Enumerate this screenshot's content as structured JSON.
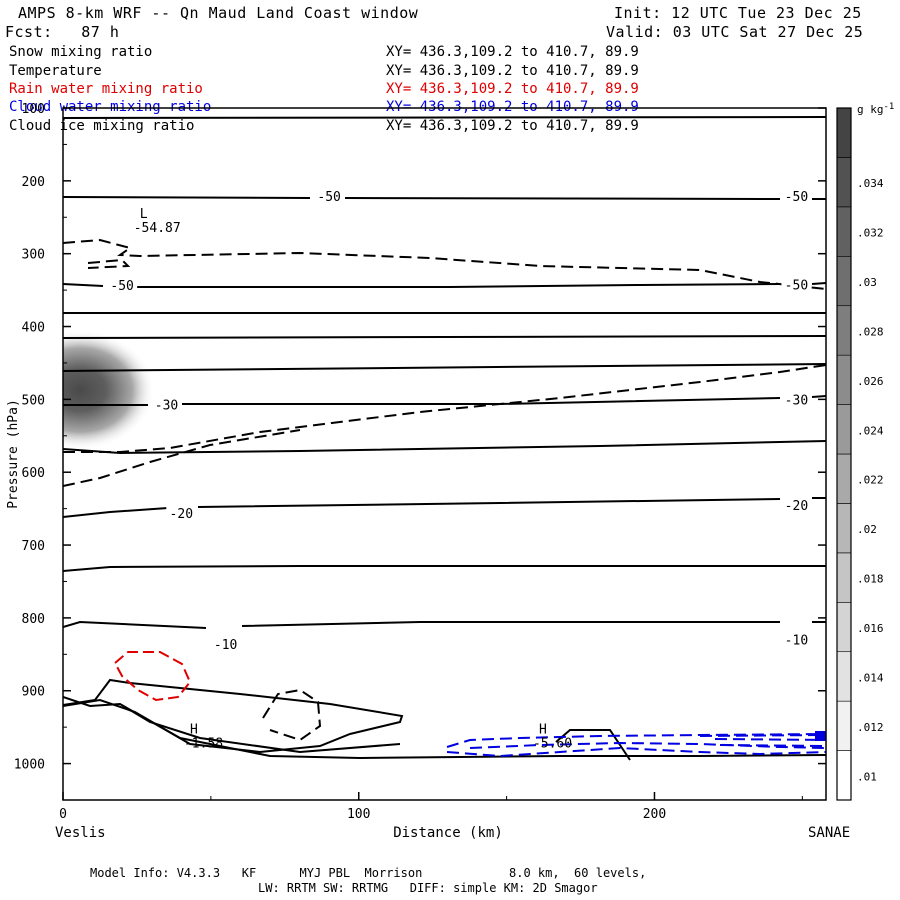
{
  "header": {
    "title": "AMPS 8-km WRF -- Qn Maud Land Coast window",
    "init": "Init: 12 UTC Tue 23 Dec 25",
    "forecast": "Fcst:   87 h",
    "valid": "Valid: 03 UTC Sat 27 Dec 25"
  },
  "fields": [
    {
      "name": "Snow mixing ratio",
      "xy": "XY= 436.3,109.2 to 410.7, 89.9",
      "color": "#000000"
    },
    {
      "name": "Temperature",
      "xy": "XY= 436.3,109.2 to 410.7, 89.9",
      "color": "#000000"
    },
    {
      "name": "Rain water mixing ratio",
      "xy": "XY= 436.3,109.2 to 410.7, 89.9",
      "color": "#e00000"
    },
    {
      "name": "Cloud water mixing ratio",
      "xy": "XY= 436.3,109.2 to 410.7, 89.9",
      "color": "#0000e0"
    },
    {
      "name": "Cloud ice mixing ratio",
      "xy": "XY= 436.3,109.2 to 410.7, 89.9",
      "color": "#000000"
    }
  ],
  "chart_data": {
    "type": "cross-section",
    "xlabel": "Distance (km)",
    "ylabel": "Pressure (hPa)",
    "xlim": [
      0,
      258
    ],
    "ylim": [
      1050,
      100
    ],
    "x_ticks": [
      0,
      100,
      200
    ],
    "y_ticks": [
      100,
      200,
      300,
      400,
      500,
      600,
      700,
      800,
      900,
      1000
    ],
    "left_endpoint": "Veslis",
    "right_endpoint": "SANAE",
    "colorbar": {
      "unit": "g kg",
      "unit_exp": "-1",
      "levels": [
        0.01,
        0.012,
        0.014,
        0.016,
        0.018,
        0.02,
        0.022,
        0.024,
        0.026,
        0.028,
        0.03,
        0.032,
        0.034
      ],
      "tick_labels": [
        ".01",
        ".012",
        ".014",
        ".016",
        ".018",
        ".02",
        ".022",
        ".024",
        ".026",
        ".028",
        ".03",
        ".032",
        ".034"
      ]
    },
    "snow_max": {
      "x_km": 5,
      "p_hPa": 478,
      "value_g_kg": 0.034
    },
    "isotherm_labels": [
      {
        "text": "-50",
        "x": 90,
        "p": 221
      },
      {
        "text": "-50",
        "x": 248,
        "p": 221
      },
      {
        "text": "-50",
        "x": 20,
        "p": 343
      },
      {
        "text": "-50",
        "x": 248,
        "p": 342
      },
      {
        "text": "-30",
        "x": 35,
        "p": 507
      },
      {
        "text": "-30",
        "x": 248,
        "p": 500
      },
      {
        "text": "-20",
        "x": 40,
        "p": 656
      },
      {
        "text": "-20",
        "x": 248,
        "p": 645
      },
      {
        "text": "-10",
        "x": 55,
        "p": 836
      },
      {
        "text": "-10",
        "x": 248,
        "p": 830
      }
    ],
    "extrema": [
      {
        "type": "L",
        "value": "-54.87",
        "x": 30,
        "p": 270
      },
      {
        "type": "H",
        "value": "-1.58",
        "x": 47,
        "p": 978
      },
      {
        "type": "H",
        "value": "-5.60",
        "x": 165,
        "p": 978
      }
    ]
  },
  "footer": {
    "line1": "Model Info: V4.3.3   KF      MYJ PBL  Morrison            8.0 km,  60 levels,",
    "line2": "LW: RRTM SW: RRTMG   DIFF: simple KM: 2D Smagor"
  }
}
